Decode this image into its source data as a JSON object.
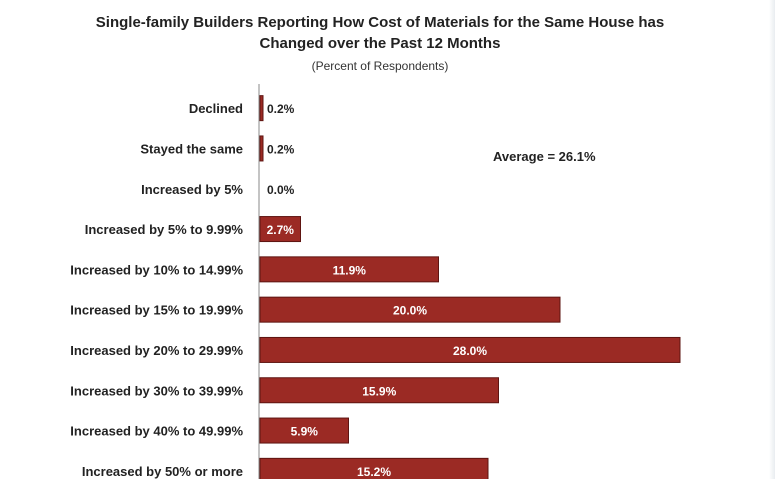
{
  "chart_data": {
    "type": "bar",
    "orientation": "horizontal",
    "title_line1": "Single-family Builders Reporting How Cost of Materials for the Same House has",
    "title_line2": "Changed over the Past 12 Months",
    "subtitle": "(Percent of Respondents)",
    "annotation": "Average = 26.1%",
    "categories": [
      "Declined",
      "Stayed the same",
      "Increased by 5%",
      "Increased by 5% to 9.99%",
      "Increased by 10% to 14.99%",
      "Increased by 15% to 19.99%",
      "Increased by 20% to 29.99%",
      "Increased by 30% to 39.99%",
      "Increased by 40% to 49.99%",
      "Increased by 50% or more"
    ],
    "values": [
      0.2,
      0.2,
      0.0,
      2.7,
      11.9,
      20.0,
      28.0,
      15.9,
      5.9,
      15.2
    ],
    "value_labels": [
      "0.2%",
      "0.2%",
      "0.0%",
      "2.7%",
      "11.9%",
      "20.0%",
      "28.0%",
      "15.9%",
      "5.9%",
      "15.2%"
    ],
    "xlim": [
      0,
      28
    ],
    "grid": false,
    "bar_color": "#9b2a24",
    "bar_edge_color": "#5e1411"
  }
}
